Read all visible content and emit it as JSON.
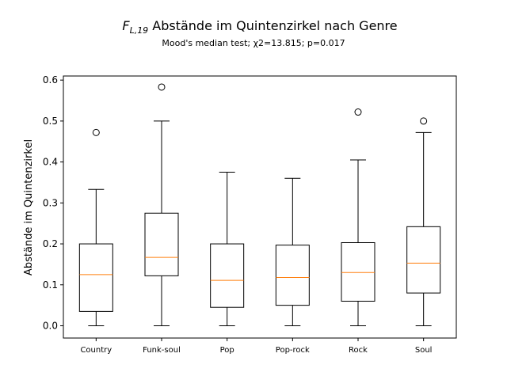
{
  "chart_data": {
    "type": "box",
    "title_symbol": "F",
    "title_subscript": "L,19",
    "title_rest": " Abstände im Quintenzirkel nach Genre",
    "subtitle": "Mood's median test; χ2=13.815; p=0.017",
    "xlabel": "",
    "ylabel": "Abstände im Quintenzirkel",
    "ylim": [
      -0.03,
      0.61
    ],
    "yticks": [
      0.0,
      0.1,
      0.2,
      0.3,
      0.4,
      0.5,
      0.6
    ],
    "ytick_labels": [
      "0.0",
      "0.1",
      "0.2",
      "0.3",
      "0.4",
      "0.5",
      "0.6"
    ],
    "grid": false,
    "categories": [
      "Country",
      "Funk-soul",
      "Pop",
      "Pop-rock",
      "Rock",
      "Soul"
    ],
    "boxes": [
      {
        "whisker_low": 0.0,
        "q1": 0.035,
        "median": 0.125,
        "q3": 0.2,
        "whisker_high": 0.333,
        "outliers": [
          0.472
        ]
      },
      {
        "whisker_low": 0.0,
        "q1": 0.122,
        "median": 0.167,
        "q3": 0.275,
        "whisker_high": 0.5,
        "outliers": [
          0.583
        ]
      },
      {
        "whisker_low": 0.0,
        "q1": 0.045,
        "median": 0.111,
        "q3": 0.2,
        "whisker_high": 0.375,
        "outliers": []
      },
      {
        "whisker_low": 0.0,
        "q1": 0.05,
        "median": 0.118,
        "q3": 0.197,
        "whisker_high": 0.36,
        "outliers": []
      },
      {
        "whisker_low": 0.0,
        "q1": 0.06,
        "median": 0.13,
        "q3": 0.203,
        "whisker_high": 0.405,
        "outliers": [
          0.522
        ]
      },
      {
        "whisker_low": 0.0,
        "q1": 0.08,
        "median": 0.153,
        "q3": 0.242,
        "whisker_high": 0.472,
        "outliers": [
          0.5
        ]
      }
    ],
    "colors": {
      "box": "#000000",
      "median": "#ff7f0e",
      "outlier": "#000000"
    }
  }
}
